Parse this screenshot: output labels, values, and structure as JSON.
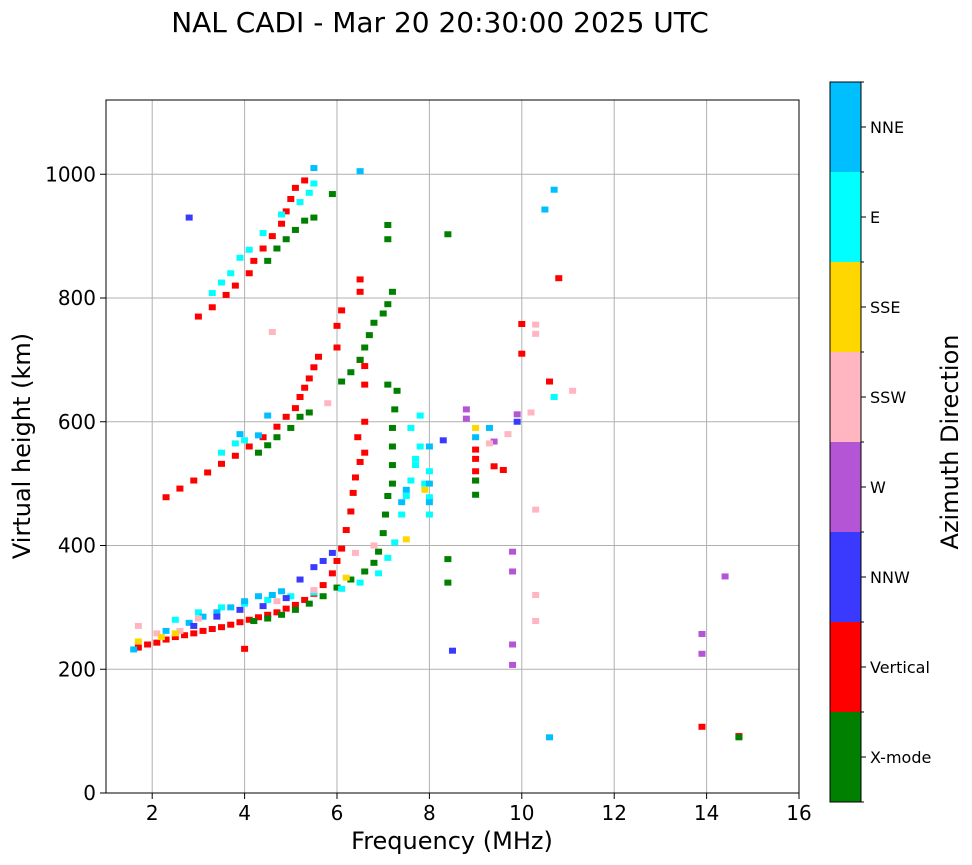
{
  "chart_data": {
    "type": "scatter",
    "title": "NAL CADI - Mar 20 20:30:00 2025 UTC",
    "xlabel": "Frequency (MHz)",
    "ylabel": "Virtual height (km)",
    "xlim": [
      1,
      16
    ],
    "ylim": [
      0,
      1120
    ],
    "xticks": [
      2,
      4,
      6,
      8,
      10,
      12,
      14,
      16
    ],
    "yticks": [
      0,
      200,
      400,
      600,
      800,
      1000
    ],
    "grid": true,
    "colorbar": {
      "label": "Azimuth Direction",
      "categories": [
        {
          "name": "X-mode",
          "color": "#008000"
        },
        {
          "name": "Vertical",
          "color": "#ff0000"
        },
        {
          "name": "NNW",
          "color": "#3a3aff"
        },
        {
          "name": "W",
          "color": "#b455d6"
        },
        {
          "name": "SSW",
          "color": "#ffb6c1"
        },
        {
          "name": "SSE",
          "color": "#ffd700"
        },
        {
          "name": "E",
          "color": "#00ffff"
        },
        {
          "name": "NNE",
          "color": "#00bfff"
        }
      ]
    },
    "series": [
      {
        "name": "Vertical",
        "points": [
          [
            1.7,
            235
          ],
          [
            1.9,
            240
          ],
          [
            2.1,
            243
          ],
          [
            2.3,
            248
          ],
          [
            2.5,
            252
          ],
          [
            2.7,
            255
          ],
          [
            2.9,
            258
          ],
          [
            3.1,
            262
          ],
          [
            3.3,
            265
          ],
          [
            3.5,
            268
          ],
          [
            3.7,
            272
          ],
          [
            3.9,
            276
          ],
          [
            4.1,
            280
          ],
          [
            4.3,
            284
          ],
          [
            4.5,
            288
          ],
          [
            4.7,
            292
          ],
          [
            4.9,
            298
          ],
          [
            5.1,
            304
          ],
          [
            5.3,
            312
          ],
          [
            5.5,
            322
          ],
          [
            5.7,
            336
          ],
          [
            5.9,
            355
          ],
          [
            6.0,
            375
          ],
          [
            6.1,
            395
          ],
          [
            6.2,
            425
          ],
          [
            6.3,
            455
          ],
          [
            6.35,
            485
          ],
          [
            6.4,
            510
          ],
          [
            6.5,
            535
          ],
          [
            6.6,
            550
          ],
          [
            6.45,
            575
          ],
          [
            6.6,
            600
          ],
          [
            2.3,
            478
          ],
          [
            2.6,
            492
          ],
          [
            2.9,
            505
          ],
          [
            3.2,
            518
          ],
          [
            3.5,
            532
          ],
          [
            3.8,
            545
          ],
          [
            4.1,
            560
          ],
          [
            4.4,
            575
          ],
          [
            4.7,
            592
          ],
          [
            4.9,
            608
          ],
          [
            5.1,
            622
          ],
          [
            5.2,
            640
          ],
          [
            5.3,
            655
          ],
          [
            5.4,
            670
          ],
          [
            5.5,
            688
          ],
          [
            5.6,
            705
          ],
          [
            6.0,
            720
          ],
          [
            6.0,
            755
          ],
          [
            6.1,
            780
          ],
          [
            6.5,
            700
          ],
          [
            6.6,
            660
          ],
          [
            6.6,
            690
          ],
          [
            6.5,
            810
          ],
          [
            6.5,
            830
          ],
          [
            3.0,
            770
          ],
          [
            3.3,
            785
          ],
          [
            3.6,
            805
          ],
          [
            3.8,
            820
          ],
          [
            4.1,
            840
          ],
          [
            4.2,
            860
          ],
          [
            4.4,
            880
          ],
          [
            4.6,
            900
          ],
          [
            4.8,
            920
          ],
          [
            4.9,
            940
          ],
          [
            5.0,
            960
          ],
          [
            5.1,
            978
          ],
          [
            5.3,
            990
          ],
          [
            9.0,
            505
          ],
          [
            9.0,
            520
          ],
          [
            9.0,
            540
          ],
          [
            9.0,
            555
          ],
          [
            9.4,
            528
          ],
          [
            9.6,
            522
          ],
          [
            10.0,
            710
          ],
          [
            10.0,
            758
          ],
          [
            10.6,
            665
          ],
          [
            10.8,
            832
          ],
          [
            13.9,
            107
          ],
          [
            14.7,
            92
          ],
          [
            4.0,
            233
          ]
        ]
      },
      {
        "name": "X-mode",
        "points": [
          [
            4.2,
            278
          ],
          [
            4.5,
            282
          ],
          [
            4.8,
            288
          ],
          [
            5.1,
            296
          ],
          [
            5.4,
            306
          ],
          [
            5.7,
            318
          ],
          [
            6.0,
            332
          ],
          [
            6.3,
            345
          ],
          [
            6.6,
            358
          ],
          [
            6.8,
            372
          ],
          [
            6.9,
            390
          ],
          [
            7.0,
            420
          ],
          [
            7.05,
            450
          ],
          [
            7.1,
            480
          ],
          [
            7.2,
            500
          ],
          [
            7.2,
            530
          ],
          [
            7.2,
            560
          ],
          [
            7.2,
            590
          ],
          [
            7.25,
            620
          ],
          [
            7.3,
            650
          ],
          [
            7.1,
            660
          ],
          [
            4.3,
            550
          ],
          [
            4.5,
            562
          ],
          [
            4.7,
            575
          ],
          [
            5.0,
            590
          ],
          [
            5.2,
            608
          ],
          [
            5.4,
            615
          ],
          [
            6.1,
            665
          ],
          [
            6.3,
            680
          ],
          [
            6.5,
            700
          ],
          [
            6.6,
            720
          ],
          [
            6.7,
            740
          ],
          [
            6.8,
            760
          ],
          [
            7.0,
            775
          ],
          [
            7.1,
            790
          ],
          [
            7.2,
            810
          ],
          [
            4.5,
            860
          ],
          [
            4.7,
            880
          ],
          [
            4.9,
            895
          ],
          [
            5.1,
            910
          ],
          [
            5.3,
            925
          ],
          [
            5.5,
            930
          ],
          [
            7.1,
            895
          ],
          [
            7.1,
            918
          ],
          [
            5.9,
            968
          ],
          [
            8.4,
            903
          ],
          [
            9.0,
            505
          ],
          [
            9.0,
            482
          ],
          [
            8.4,
            378
          ],
          [
            8.4,
            340
          ],
          [
            14.7,
            90
          ]
        ]
      },
      {
        "name": "E",
        "points": [
          [
            2.5,
            280
          ],
          [
            3.0,
            292
          ],
          [
            3.5,
            300
          ],
          [
            4.0,
            306
          ],
          [
            4.5,
            312
          ],
          [
            5.0,
            318
          ],
          [
            5.5,
            324
          ],
          [
            6.1,
            330
          ],
          [
            6.5,
            340
          ],
          [
            6.9,
            355
          ],
          [
            7.1,
            380
          ],
          [
            7.25,
            405
          ],
          [
            7.4,
            450
          ],
          [
            7.5,
            480
          ],
          [
            7.6,
            505
          ],
          [
            7.9,
            500
          ],
          [
            8.0,
            478
          ],
          [
            8.0,
            450
          ],
          [
            8.0,
            520
          ],
          [
            7.7,
            530
          ],
          [
            7.7,
            540
          ],
          [
            7.8,
            560
          ],
          [
            7.6,
            590
          ],
          [
            7.8,
            610
          ],
          [
            3.5,
            550
          ],
          [
            3.8,
            565
          ],
          [
            4.0,
            570
          ],
          [
            3.3,
            808
          ],
          [
            3.5,
            825
          ],
          [
            3.7,
            840
          ],
          [
            3.9,
            865
          ],
          [
            4.1,
            878
          ],
          [
            4.4,
            905
          ],
          [
            4.8,
            935
          ],
          [
            5.2,
            955
          ],
          [
            5.4,
            970
          ],
          [
            5.5,
            985
          ],
          [
            10.7,
            640
          ]
        ]
      },
      {
        "name": "NNE",
        "points": [
          [
            1.6,
            232
          ],
          [
            2.3,
            262
          ],
          [
            2.8,
            275
          ],
          [
            3.1,
            285
          ],
          [
            3.4,
            292
          ],
          [
            3.7,
            300
          ],
          [
            4.0,
            310
          ],
          [
            4.3,
            318
          ],
          [
            4.6,
            320
          ],
          [
            4.8,
            326
          ],
          [
            7.4,
            470
          ],
          [
            7.5,
            490
          ],
          [
            8.0,
            470
          ],
          [
            8.0,
            500
          ],
          [
            8.0,
            560
          ],
          [
            9.0,
            575
          ],
          [
            9.3,
            590
          ],
          [
            3.9,
            580
          ],
          [
            4.3,
            578
          ],
          [
            4.5,
            610
          ],
          [
            6.5,
            1005
          ],
          [
            10.7,
            975
          ],
          [
            10.6,
            90
          ],
          [
            10.5,
            943
          ],
          [
            5.5,
            1010
          ]
        ]
      },
      {
        "name": "NNW",
        "points": [
          [
            2.9,
            270
          ],
          [
            3.4,
            285
          ],
          [
            3.9,
            296
          ],
          [
            4.4,
            302
          ],
          [
            4.9,
            315
          ],
          [
            5.2,
            345
          ],
          [
            5.5,
            365
          ],
          [
            5.7,
            375
          ],
          [
            5.9,
            388
          ],
          [
            8.3,
            570
          ],
          [
            8.5,
            230
          ],
          [
            9.9,
            600
          ],
          [
            2.8,
            930
          ]
        ]
      },
      {
        "name": "W",
        "points": [
          [
            8.8,
            620
          ],
          [
            8.8,
            605
          ],
          [
            9.4,
            568
          ],
          [
            9.8,
            390
          ],
          [
            9.8,
            358
          ],
          [
            9.8,
            240
          ],
          [
            9.8,
            207
          ],
          [
            9.9,
            612
          ],
          [
            13.9,
            257
          ],
          [
            14.4,
            350
          ],
          [
            13.9,
            225
          ]
        ]
      },
      {
        "name": "SSW",
        "points": [
          [
            1.7,
            270
          ],
          [
            2.1,
            258
          ],
          [
            2.6,
            262
          ],
          [
            3.0,
            282
          ],
          [
            4.7,
            310
          ],
          [
            5.5,
            328
          ],
          [
            6.4,
            388
          ],
          [
            6.8,
            400
          ],
          [
            5.8,
            630
          ],
          [
            4.6,
            745
          ],
          [
            10.3,
            757
          ],
          [
            10.3,
            742
          ],
          [
            10.3,
            458
          ],
          [
            10.3,
            320
          ],
          [
            10.3,
            278
          ],
          [
            11.1,
            650
          ],
          [
            10.2,
            615
          ],
          [
            9.7,
            580
          ],
          [
            9.3,
            565
          ]
        ]
      },
      {
        "name": "SSE",
        "points": [
          [
            1.7,
            245
          ],
          [
            2.2,
            252
          ],
          [
            2.5,
            258
          ],
          [
            7.5,
            410
          ],
          [
            7.9,
            490
          ],
          [
            9.0,
            590
          ],
          [
            6.2,
            348
          ]
        ]
      }
    ]
  }
}
